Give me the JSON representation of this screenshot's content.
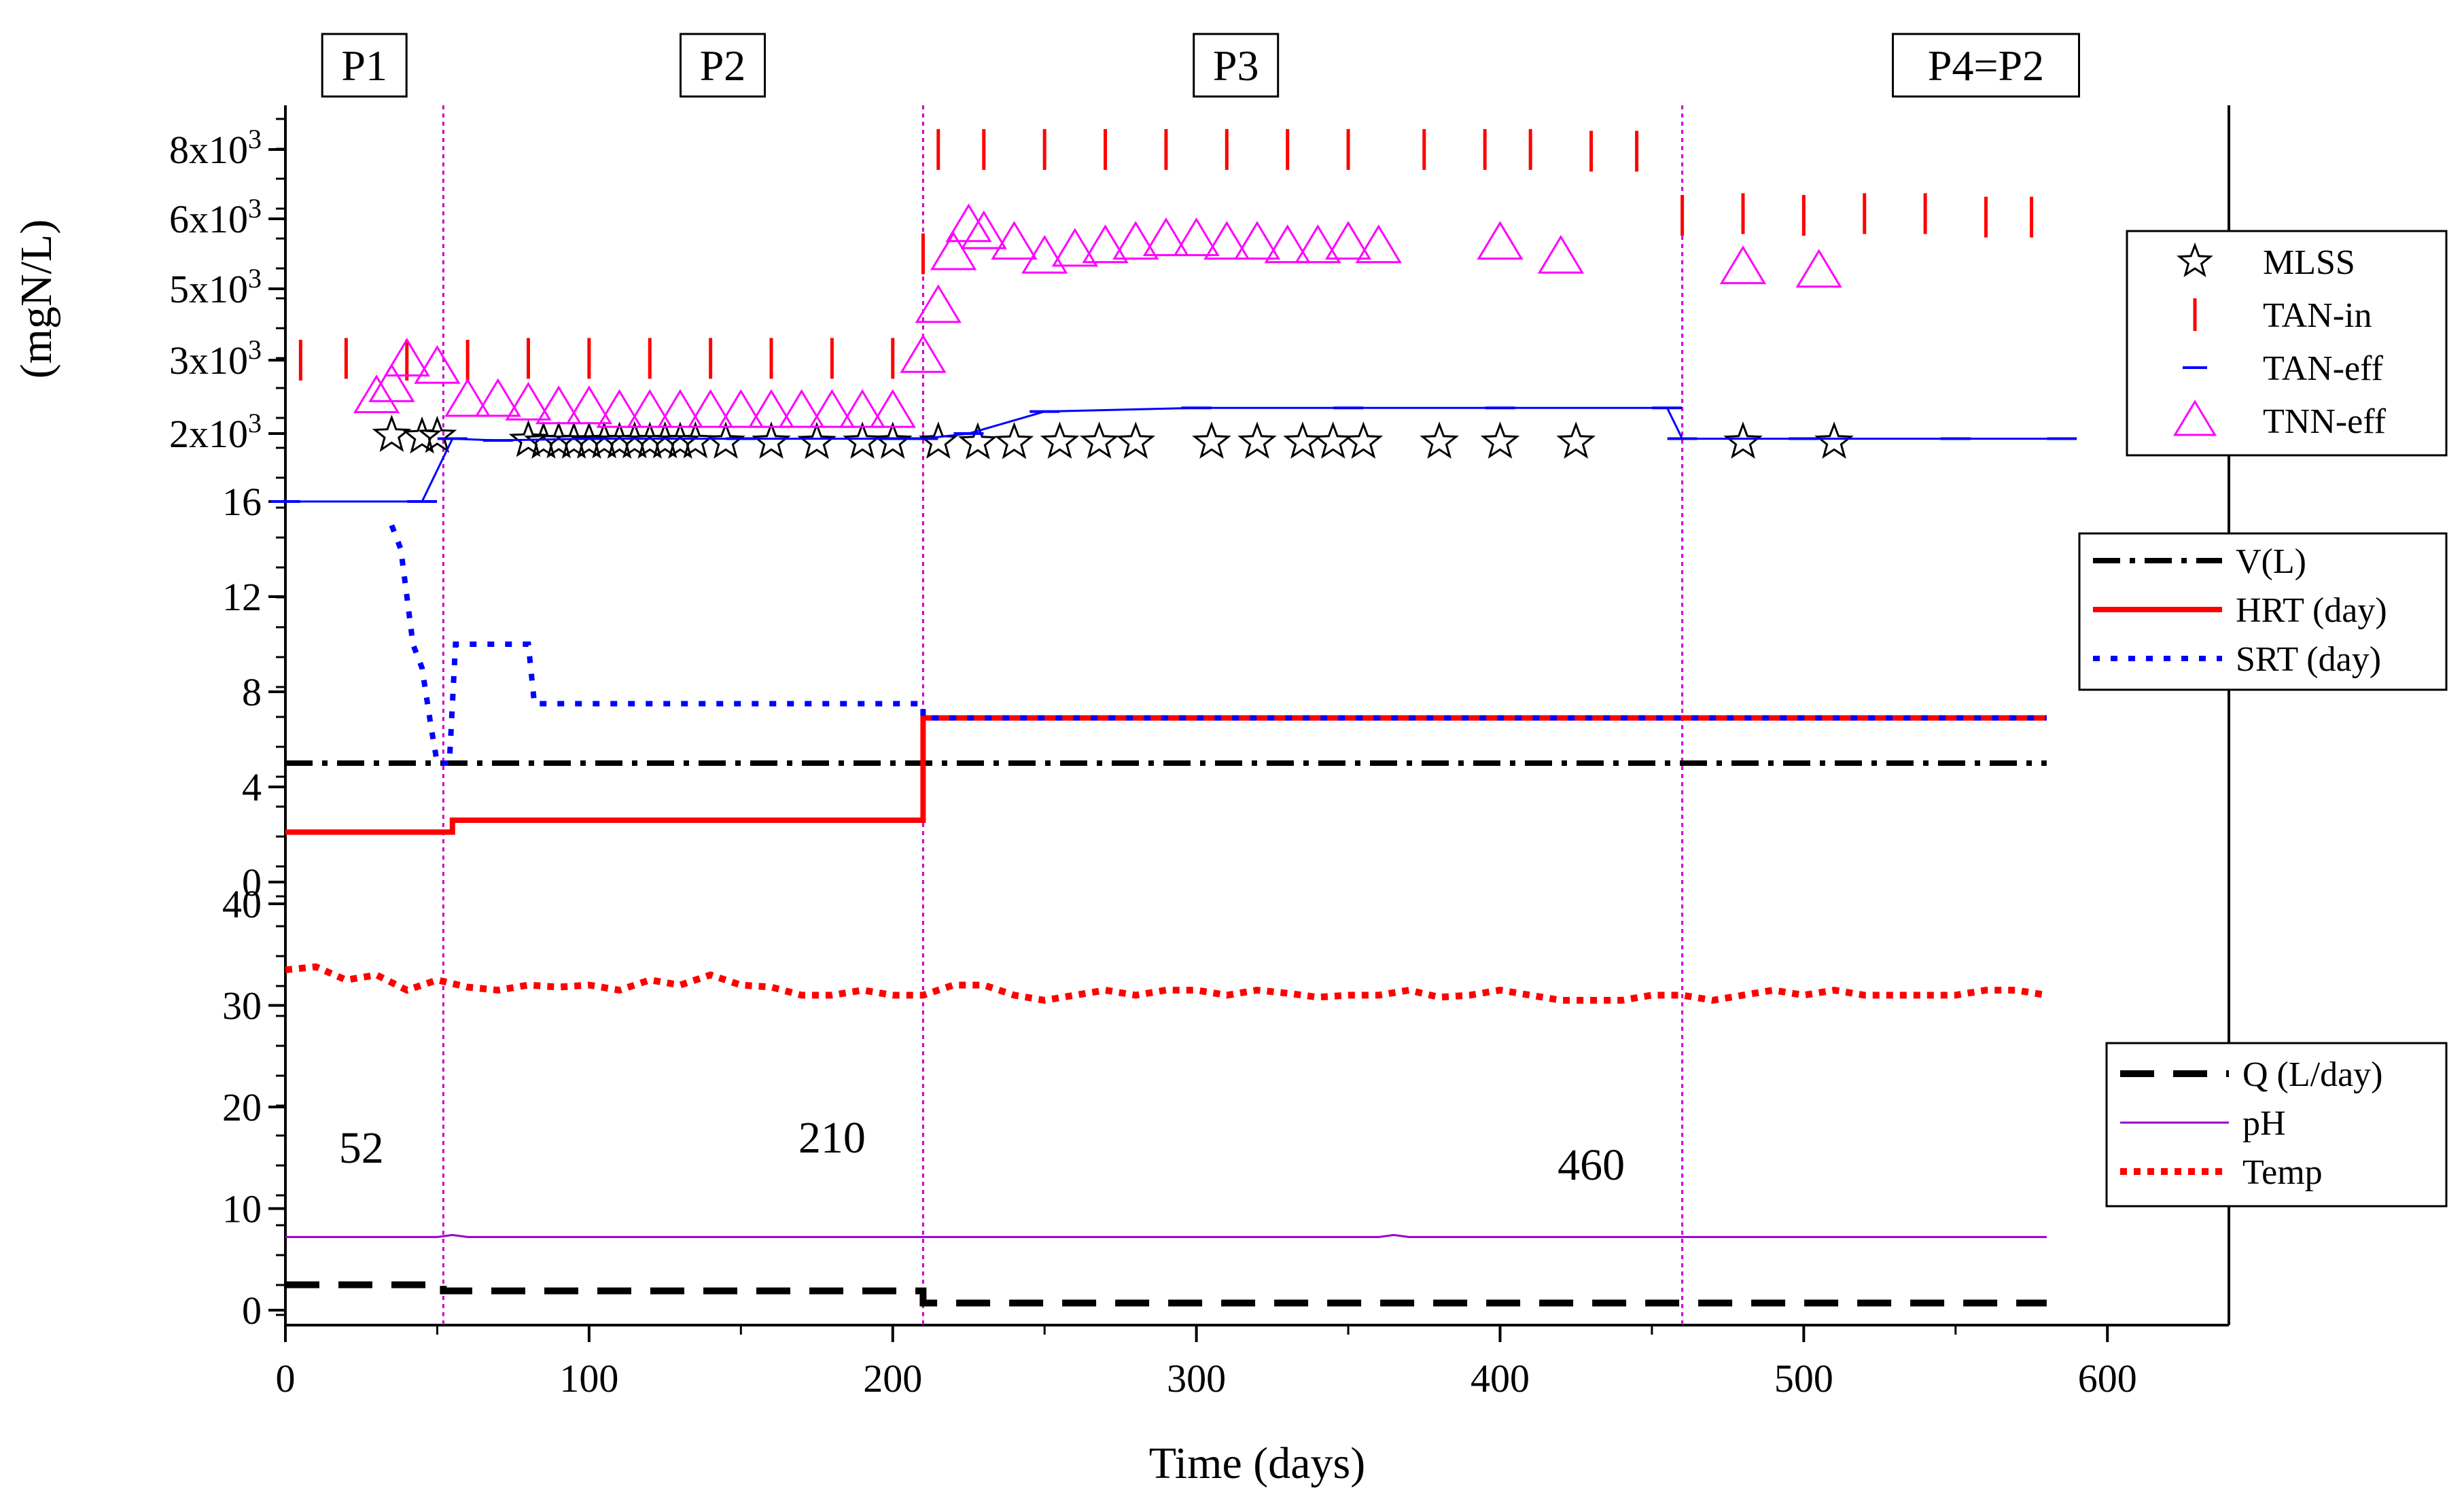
{
  "chart_data": {
    "type": "line",
    "xlabel": "Time (days)",
    "x_ticks": [
      0,
      100,
      200,
      300,
      400,
      500,
      600
    ],
    "xlim": [
      0,
      640
    ],
    "phases": [
      {
        "label": "P1",
        "x_center": 26
      },
      {
        "label": "P2",
        "x_center": 144
      },
      {
        "label": "P3",
        "x_center": 313
      },
      {
        "label": "P4=P2",
        "x_center": 560
      }
    ],
    "phase_boundaries": [
      52,
      210,
      460
    ],
    "annotations": [
      {
        "text": "52",
        "x": 25,
        "y": 16
      },
      {
        "text": "210",
        "x": 180,
        "y": 17
      },
      {
        "text": "460",
        "x": 430,
        "y": 14.3
      }
    ],
    "top_panel": {
      "ylabel": "(mgN/L)",
      "tick_labels": [
        "16",
        "2x10³",
        "3x10³",
        "5x10³",
        "6x10³",
        "8x10³"
      ],
      "tick_sup": "3",
      "tick_mantissa": [
        "2x10",
        "3x10",
        "5x10",
        "6x10",
        "8x10"
      ],
      "note": "broken axis: lower section 16, upper section 2000-8000 mgN/L (piecewise)",
      "series": [
        {
          "name": "MLSS",
          "marker": "star",
          "color": "#000000",
          "x": [
            35,
            45,
            50,
            80,
            85,
            90,
            95,
            100,
            105,
            110,
            115,
            120,
            125,
            130,
            135,
            145,
            160,
            175,
            190,
            200,
            215,
            228,
            240,
            255,
            268,
            280,
            305,
            320,
            335,
            345,
            355,
            380,
            400,
            425,
            480,
            510
          ],
          "y": [
            1950,
            1900,
            1920,
            1800,
            1750,
            1760,
            1750,
            1750,
            1760,
            1750,
            1760,
            1750,
            1760,
            1750,
            1760,
            1750,
            1750,
            1740,
            1750,
            1750,
            1750,
            1730,
            1740,
            1750,
            1750,
            1750,
            1750,
            1750,
            1750,
            1750,
            1750,
            1750,
            1750,
            1750,
            1750,
            1750
          ]
        },
        {
          "name": "TAN-in",
          "marker": "vbar",
          "color": "#ff0000",
          "x": [
            5,
            20,
            40,
            60,
            80,
            100,
            120,
            140,
            160,
            180,
            200,
            210,
            215,
            230,
            250,
            270,
            290,
            310,
            330,
            350,
            375,
            395,
            410,
            430,
            445,
            460,
            480,
            500,
            520,
            540,
            560,
            575
          ],
          "y": [
            3000,
            3050,
            3000,
            3000,
            3050,
            3050,
            3050,
            3050,
            3050,
            3050,
            3050,
            5500,
            8050,
            8050,
            8000,
            8000,
            8050,
            8050,
            8000,
            8000,
            8000,
            8050,
            8000,
            7950,
            7950,
            6100,
            6150,
            6100,
            6150,
            6150,
            6050,
            6050
          ]
        },
        {
          "name": "TAN-eff",
          "marker": "hbar",
          "color": "#0000ff",
          "x": [
            0,
            45,
            55,
            70,
            100,
            150,
            200,
            210,
            225,
            250,
            300,
            350,
            400,
            455,
            460,
            500,
            550,
            585
          ],
          "y": [
            16,
            16,
            1850,
            1800,
            1850,
            1850,
            1850,
            1850,
            2000,
            2300,
            2350,
            2350,
            2350,
            2350,
            1850,
            1850,
            1850,
            1850
          ]
        },
        {
          "name": "TNN-eff",
          "marker": "triangle",
          "color": "#ff00ff",
          "x": [
            30,
            35,
            40,
            50,
            60,
            70,
            80,
            90,
            100,
            110,
            120,
            130,
            140,
            150,
            160,
            170,
            180,
            190,
            200,
            210,
            215,
            220,
            225,
            230,
            240,
            250,
            260,
            270,
            280,
            290,
            300,
            310,
            320,
            330,
            340,
            350,
            360,
            400,
            420,
            480,
            505
          ],
          "y": [
            2500,
            2650,
            3000,
            2900,
            2450,
            2450,
            2400,
            2350,
            2350,
            2300,
            2300,
            2300,
            2300,
            2300,
            2300,
            2300,
            2300,
            2300,
            2300,
            3100,
            4500,
            5500,
            5900,
            5800,
            5650,
            5450,
            5550,
            5600,
            5650,
            5700,
            5700,
            5650,
            5650,
            5600,
            5600,
            5650,
            5600,
            5650,
            5450,
            5300,
            5250
          ]
        }
      ]
    },
    "middle_panel": {
      "y_ticks": [
        0,
        4,
        8,
        12,
        16
      ],
      "ylim": [
        0,
        16
      ],
      "series": [
        {
          "name": "V(L)",
          "style": "dash-dot",
          "color": "#000000",
          "x": [
            0,
            580
          ],
          "y": [
            5,
            5
          ]
        },
        {
          "name": "HRT (day)",
          "style": "solid",
          "color": "#ff0000",
          "x": [
            0,
            55,
            55,
            210,
            210,
            580
          ],
          "y": [
            2.1,
            2.1,
            2.6,
            2.6,
            6.9,
            6.9
          ]
        },
        {
          "name": "SRT (day)",
          "style": "dotted",
          "color": "#0000ff",
          "x": [
            35,
            38,
            40,
            42,
            45,
            48,
            50,
            52,
            54,
            56,
            58,
            80,
            82,
            90,
            210,
            210,
            580
          ],
          "y": [
            15,
            14,
            12,
            10,
            9,
            6.5,
            5,
            5,
            5,
            10,
            10,
            10,
            7.5,
            7.5,
            7.5,
            6.9,
            6.9
          ]
        }
      ]
    },
    "bottom_panel": {
      "y_ticks": [
        0,
        10,
        20,
        30,
        40
      ],
      "ylim": [
        0,
        40
      ],
      "series": [
        {
          "name": "Q (L/day)",
          "style": "dashed",
          "color": "#000000",
          "x": [
            0,
            52,
            52,
            210,
            210,
            580
          ],
          "y": [
            2.5,
            2.5,
            1.9,
            1.9,
            0.7,
            0.7
          ]
        },
        {
          "name": "pH",
          "style": "thin",
          "color": "#9900cc",
          "x": [
            0,
            50,
            55,
            60,
            100,
            200,
            300,
            360,
            365,
            370,
            460,
            580
          ],
          "y": [
            7.2,
            7.2,
            7.4,
            7.2,
            7.2,
            7.2,
            7.2,
            7.2,
            7.4,
            7.2,
            7.2,
            7.2
          ]
        },
        {
          "name": "Temp",
          "style": "dotted-thick",
          "color": "#ff0000",
          "x": [
            0,
            10,
            20,
            30,
            40,
            50,
            60,
            70,
            80,
            90,
            100,
            110,
            120,
            130,
            140,
            150,
            160,
            170,
            180,
            190,
            200,
            210,
            220,
            230,
            240,
            250,
            260,
            270,
            280,
            290,
            300,
            310,
            320,
            330,
            340,
            350,
            360,
            370,
            380,
            390,
            400,
            410,
            420,
            430,
            440,
            450,
            460,
            470,
            480,
            490,
            500,
            510,
            520,
            530,
            540,
            550,
            560,
            570,
            580
          ],
          "y": [
            33.5,
            33.8,
            32.5,
            33.0,
            31.5,
            32.5,
            31.8,
            31.5,
            32.0,
            31.8,
            32.0,
            31.5,
            32.5,
            32.0,
            33.0,
            32.0,
            31.8,
            31.0,
            31.0,
            31.5,
            31.0,
            31.0,
            32.0,
            32.0,
            31.0,
            30.5,
            31.0,
            31.5,
            31.0,
            31.5,
            31.5,
            31.0,
            31.5,
            31.2,
            30.8,
            31.0,
            31.0,
            31.5,
            30.8,
            31.0,
            31.5,
            31.0,
            30.5,
            30.5,
            30.5,
            31.0,
            31.0,
            30.5,
            31.0,
            31.5,
            31.0,
            31.5,
            31.0,
            31.0,
            31.0,
            31.0,
            31.5,
            31.5,
            31.0
          ]
        }
      ]
    },
    "legend_groups": [
      [
        "MLSS",
        "TAN-in",
        "TAN-eff",
        "TNN-eff"
      ],
      [
        "V(L)",
        "HRT (day)",
        "SRT (day)"
      ],
      [
        "Q (L/day)",
        "pH",
        "Temp"
      ]
    ]
  }
}
